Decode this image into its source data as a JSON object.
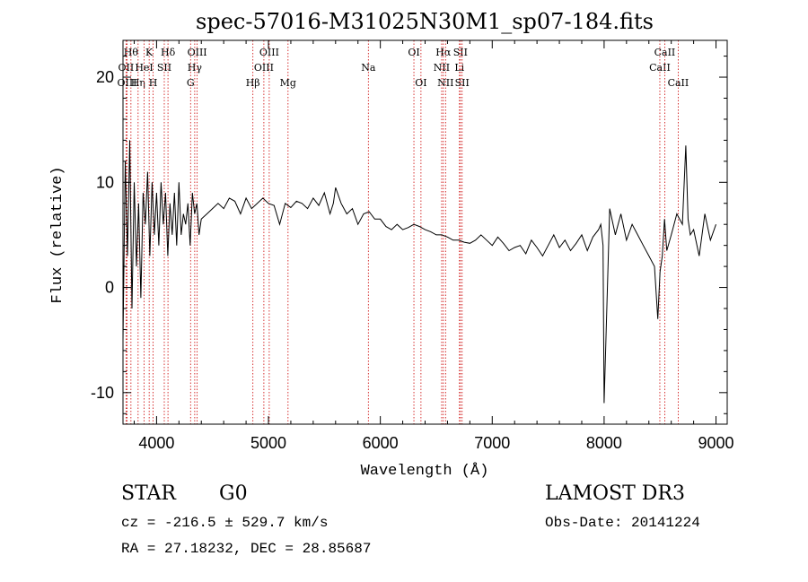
{
  "chart_data": {
    "type": "line",
    "title": "spec-57016-M31025N30M1_sp07-184.fits",
    "xlabel": "Wavelength (Å)",
    "ylabel": "Flux (relative)",
    "xlim": [
      3700,
      9100
    ],
    "ylim": [
      -13,
      23.5
    ],
    "x_ticks": [
      4000,
      5000,
      6000,
      7000,
      8000,
      9000
    ],
    "y_ticks": [
      -10,
      0,
      10,
      20
    ],
    "grid": false,
    "line_color": "#000000",
    "marker_color": "#cc0000",
    "series": [
      {
        "name": "flux",
        "x": [
          3700,
          3720,
          3740,
          3760,
          3780,
          3800,
          3820,
          3840,
          3860,
          3880,
          3900,
          3920,
          3940,
          3960,
          3980,
          4000,
          4020,
          4040,
          4060,
          4080,
          4100,
          4120,
          4140,
          4160,
          4180,
          4200,
          4220,
          4240,
          4260,
          4280,
          4300,
          4320,
          4340,
          4360,
          4380,
          4400,
          4450,
          4500,
          4550,
          4600,
          4650,
          4700,
          4750,
          4800,
          4850,
          4900,
          4950,
          5000,
          5050,
          5100,
          5150,
          5200,
          5250,
          5300,
          5350,
          5400,
          5450,
          5500,
          5550,
          5580,
          5600,
          5650,
          5700,
          5750,
          5800,
          5850,
          5900,
          5950,
          6000,
          6050,
          6100,
          6150,
          6200,
          6250,
          6300,
          6350,
          6400,
          6450,
          6500,
          6550,
          6600,
          6650,
          6700,
          6750,
          6800,
          6850,
          6900,
          6950,
          7000,
          7050,
          7100,
          7150,
          7200,
          7250,
          7300,
          7350,
          7400,
          7450,
          7500,
          7550,
          7600,
          7650,
          7700,
          7750,
          7800,
          7850,
          7900,
          7950,
          7970,
          7990,
          8000,
          8050,
          8100,
          8150,
          8200,
          8250,
          8300,
          8350,
          8400,
          8450,
          8480,
          8500,
          8520,
          8540,
          8560,
          8600,
          8650,
          8700,
          8730,
          8750,
          8770,
          8800,
          8850,
          8900,
          8950,
          9000
        ],
        "values": [
          -5,
          12,
          3,
          14,
          -2,
          10,
          2,
          8,
          -1,
          9,
          6,
          11,
          3,
          10,
          5,
          9,
          4,
          10,
          6,
          9,
          3,
          8,
          5,
          9,
          4,
          10,
          5,
          7,
          6,
          8,
          4,
          9,
          7,
          8,
          5,
          6.5,
          7,
          7.5,
          8,
          7.5,
          8.5,
          8.2,
          7,
          8.5,
          7.5,
          8,
          8.5,
          8,
          7.8,
          6,
          8,
          7.6,
          8.2,
          8,
          7.5,
          8.5,
          7.8,
          9,
          7,
          8,
          9.5,
          8,
          7,
          7.5,
          6,
          7,
          7.2,
          6.5,
          6.5,
          5.8,
          5.5,
          6,
          5.5,
          5.7,
          6,
          5.8,
          5.5,
          5.3,
          5,
          5,
          4.8,
          4.5,
          4.5,
          4.3,
          4.2,
          4.5,
          5,
          4.5,
          4,
          4.8,
          4.2,
          3.5,
          3.8,
          4,
          3.2,
          4.5,
          3.8,
          3,
          4,
          5,
          3.8,
          4.5,
          3.5,
          4.2,
          5,
          3.5,
          4.8,
          5.5,
          6,
          4,
          -11,
          7.5,
          5,
          7,
          4.5,
          6,
          5,
          4,
          3,
          2,
          -3,
          1.5,
          3,
          6.5,
          3.5,
          5,
          7,
          6,
          13.5,
          6.5,
          5,
          5.5,
          3,
          7,
          4.5,
          6
        ]
      }
    ],
    "line_markers": [
      {
        "x": 3771,
        "label": "Hθ",
        "row": 1
      },
      {
        "x": 3727,
        "label": "OII",
        "row": 2
      },
      {
        "x": 3736,
        "label": "OIII",
        "row": 3
      },
      {
        "x": 3835,
        "label": "Hη",
        "row": 3
      },
      {
        "x": 3889,
        "label": "HeI",
        "row": 2
      },
      {
        "x": 3934,
        "label": "K",
        "row": 1
      },
      {
        "x": 3969,
        "label": "H",
        "row": 3
      },
      {
        "x": 4069,
        "label": "SII",
        "row": 2
      },
      {
        "x": 4102,
        "label": "Hδ",
        "row": 1
      },
      {
        "x": 4304,
        "label": "G",
        "row": 3
      },
      {
        "x": 4341,
        "label": "Hγ",
        "row": 2
      },
      {
        "x": 4363,
        "label": "OIII",
        "row": 1
      },
      {
        "x": 4861,
        "label": "Hβ",
        "row": 3
      },
      {
        "x": 4959,
        "label": "OIII",
        "row": 2
      },
      {
        "x": 5007,
        "label": "OIII",
        "row": 1
      },
      {
        "x": 5175,
        "label": "Mg",
        "row": 3
      },
      {
        "x": 5893,
        "label": "Na",
        "row": 2
      },
      {
        "x": 6300,
        "label": "OI",
        "row": 1
      },
      {
        "x": 6363,
        "label": "OI",
        "row": 3
      },
      {
        "x": 6548,
        "label": "NII",
        "row": 2
      },
      {
        "x": 6563,
        "label": "Hα",
        "row": 1
      },
      {
        "x": 6583,
        "label": "NII",
        "row": 3
      },
      {
        "x": 6707,
        "label": "Li",
        "row": 2
      },
      {
        "x": 6716,
        "label": "SII",
        "row": 1
      },
      {
        "x": 6731,
        "label": "SII",
        "row": 3
      },
      {
        "x": 8498,
        "label": "CaII",
        "row": 2
      },
      {
        "x": 8542,
        "label": "CaII",
        "row": 1
      },
      {
        "x": 8662,
        "label": "CaII",
        "row": 3
      }
    ]
  },
  "info": {
    "object_class": "STAR",
    "subclass": "G0",
    "survey": "LAMOST DR3",
    "redshift": "cz = -216.5 ± 529.7 km/s",
    "obs_date": "Obs-Date: 20141224",
    "coords": "RA =  27.18232, DEC =  28.85687"
  }
}
